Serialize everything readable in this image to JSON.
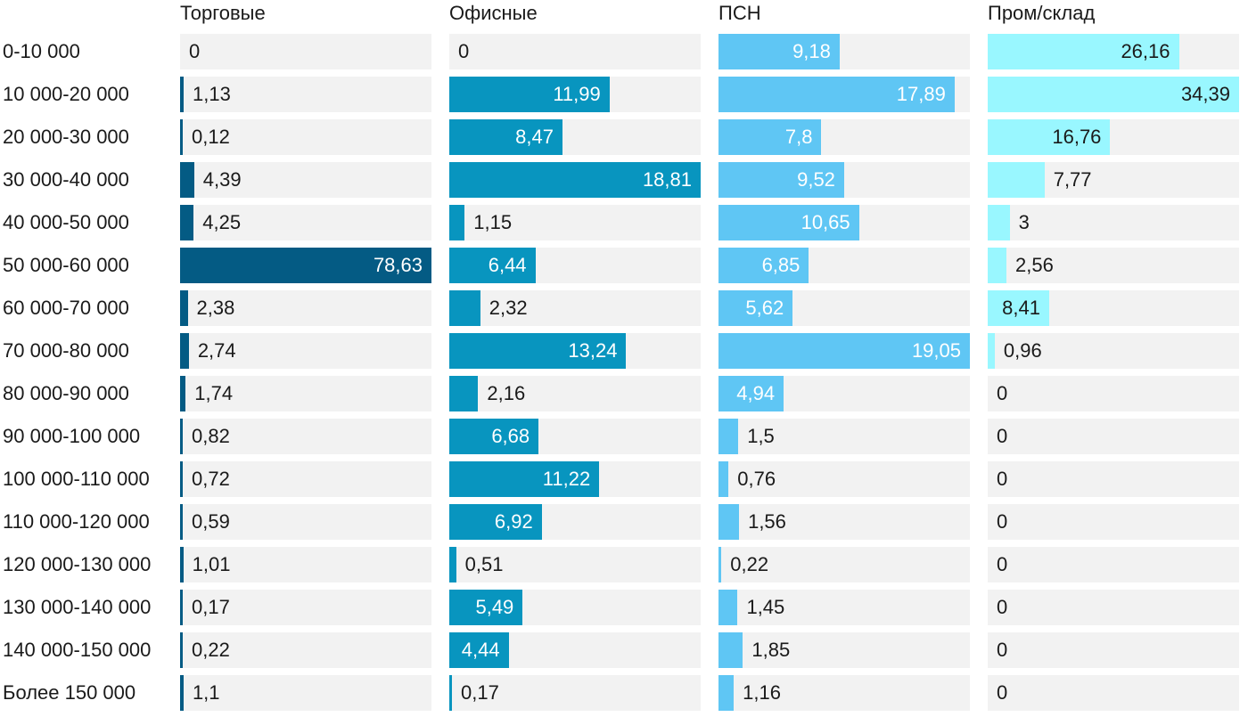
{
  "chart_data": {
    "type": "bar",
    "orientation": "horizontal",
    "layout": "small-multiples",
    "categories": [
      "0-10 000",
      "10 000-20 000",
      "20 000-30 000",
      "30 000-40 000",
      "40 000-50 000",
      "50 000-60 000",
      "60 000-70 000",
      "70 000-80 000",
      "80 000-90 000",
      "90 000-100 000",
      "100 000-110 000",
      "110 000-120 000",
      "120 000-130 000",
      "130 000-140 000",
      "140 000-150 000",
      "Более 150 000"
    ],
    "series": [
      {
        "name": "Торговые",
        "color": "#045b84",
        "max": 78.63,
        "labels": [
          "0",
          "1,13",
          "0,12",
          "4,39",
          "4,25",
          "78,63",
          "2,38",
          "2,74",
          "1,74",
          "0,82",
          "0,72",
          "0,59",
          "1,01",
          "0,17",
          "0,22",
          "1,1"
        ],
        "values": [
          0,
          1.13,
          0.12,
          4.39,
          4.25,
          78.63,
          2.38,
          2.74,
          1.74,
          0.82,
          0.72,
          0.59,
          1.01,
          0.17,
          0.22,
          1.1
        ]
      },
      {
        "name": "Офисные",
        "color": "#0895bf",
        "max": 18.81,
        "labels": [
          "0",
          "11,99",
          "8,47",
          "18,81",
          "1,15",
          "6,44",
          "2,32",
          "13,24",
          "2,16",
          "6,68",
          "11,22",
          "6,92",
          "0,51",
          "5,49",
          "4,44",
          "0,17"
        ],
        "values": [
          0,
          11.99,
          8.47,
          18.81,
          1.15,
          6.44,
          2.32,
          13.24,
          2.16,
          6.68,
          11.22,
          6.92,
          0.51,
          5.49,
          4.44,
          0.17
        ]
      },
      {
        "name": "ПСН",
        "color": "#5fc6f4",
        "max": 19.05,
        "labels": [
          "9,18",
          "17,89",
          "7,8",
          "9,52",
          "10,65",
          "6,85",
          "5,62",
          "19,05",
          "4,94",
          "1,5",
          "0,76",
          "1,56",
          "0,22",
          "1,45",
          "1,85",
          "1,16"
        ],
        "values": [
          9.18,
          17.89,
          7.8,
          9.52,
          10.65,
          6.85,
          5.62,
          19.05,
          4.94,
          1.5,
          0.76,
          1.56,
          0.22,
          1.45,
          1.85,
          1.16
        ]
      },
      {
        "name": "Пром/склад",
        "color": "#99f7ff",
        "max": 34.39,
        "labels": [
          "26,16",
          "34,39",
          "16,76",
          "7,77",
          "3",
          "2,56",
          "8,41",
          "0,96",
          "0",
          "0",
          "0",
          "0",
          "0",
          "0",
          "0",
          "0"
        ],
        "values": [
          26.16,
          34.39,
          16.76,
          7.77,
          3,
          2.56,
          8.41,
          0.96,
          0,
          0,
          0,
          0,
          0,
          0,
          0,
          0
        ]
      }
    ],
    "xlabel": "",
    "ylabel": "",
    "grid": false,
    "legend": "none"
  }
}
